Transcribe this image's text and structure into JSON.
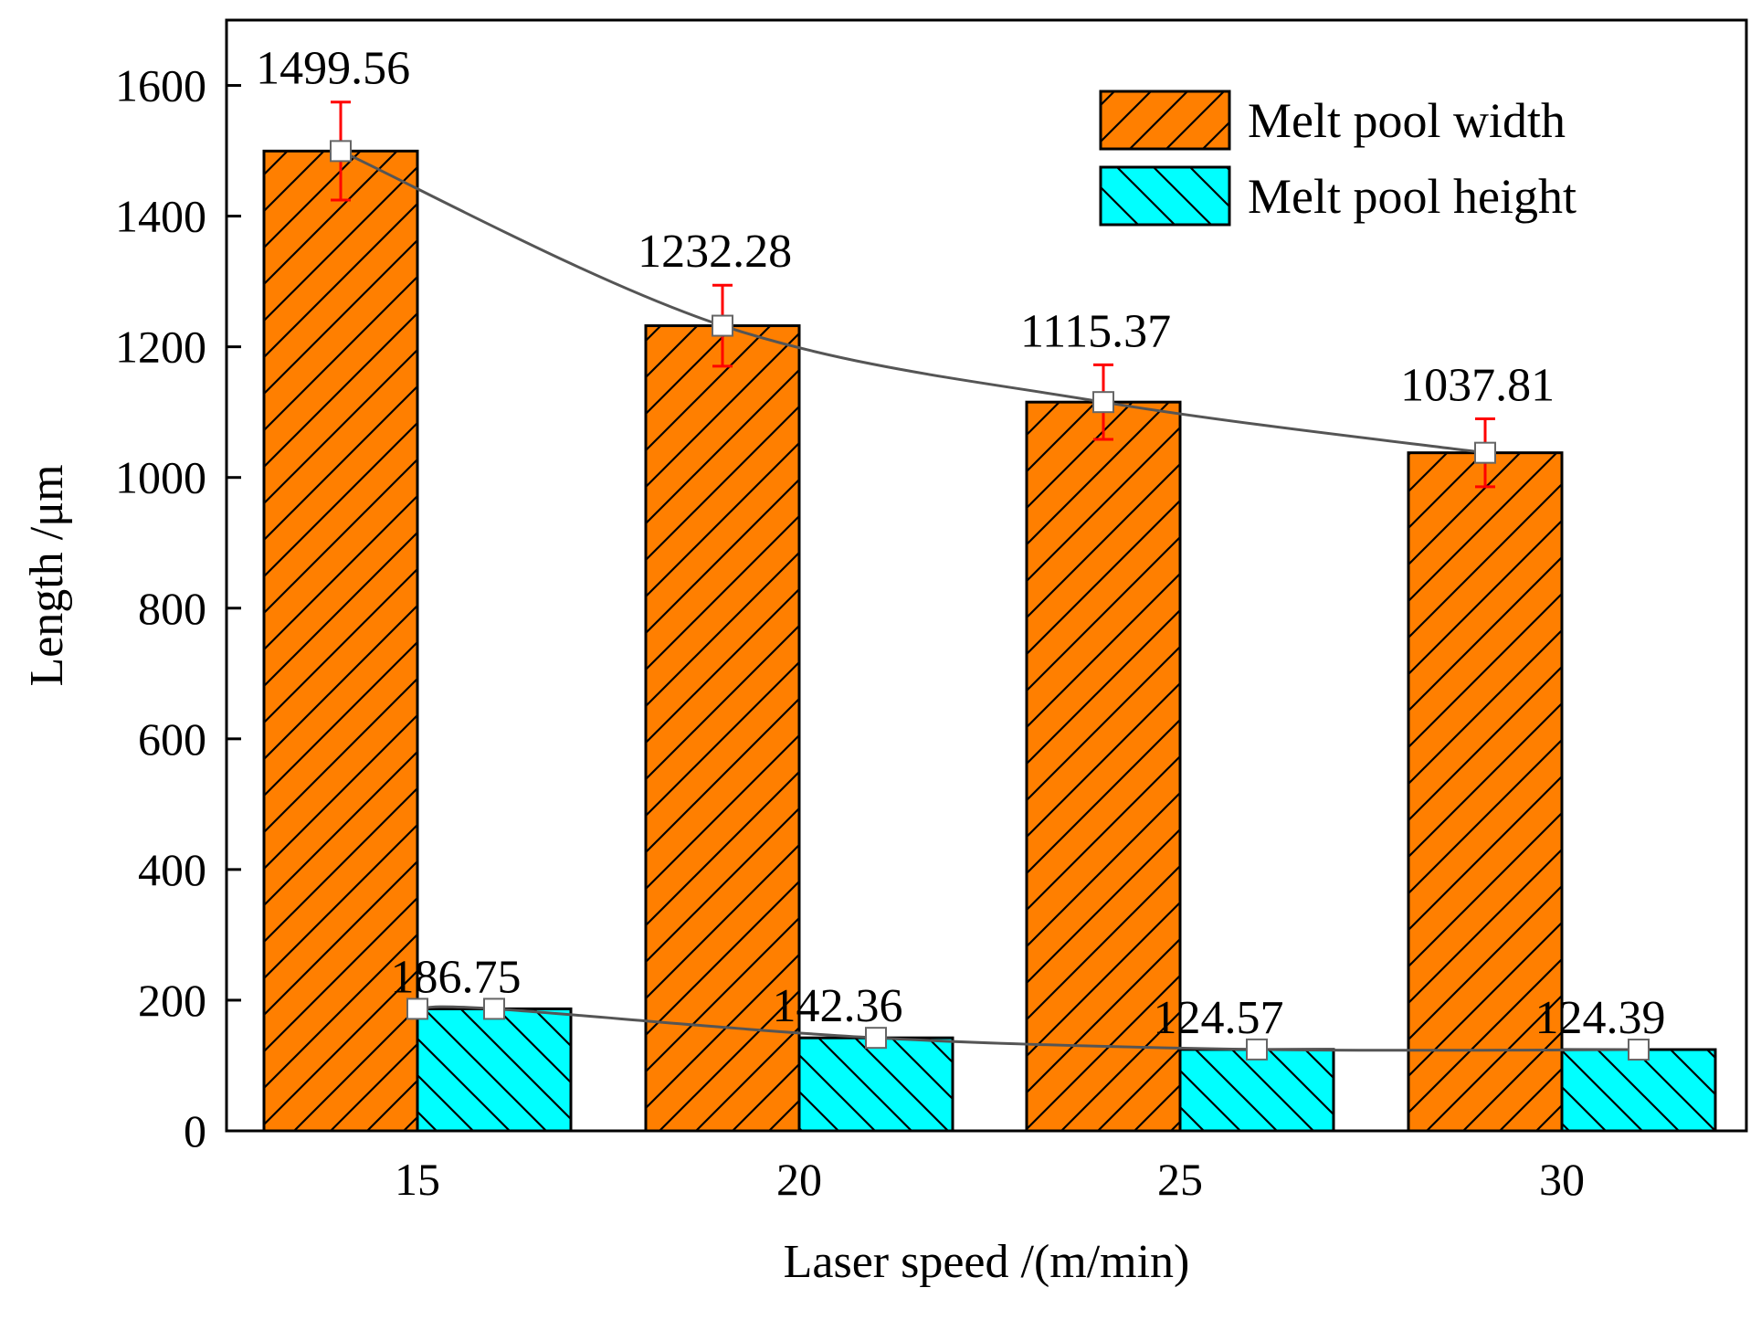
{
  "chart_data": {
    "type": "bar",
    "xlabel": "Laser speed /(m/min)",
    "ylabel": "Length /μm",
    "ylim": [
      0,
      1700
    ],
    "yticks": [
      0,
      200,
      400,
      600,
      800,
      1000,
      1200,
      1400,
      1600
    ],
    "categories": [
      "15",
      "20",
      "25",
      "30"
    ],
    "series": [
      {
        "name": "Melt pool width",
        "values": [
          1499.56,
          1232.28,
          1115.37,
          1037.81
        ],
        "labels": [
          "1499.56",
          "1232.28",
          "1115.37",
          "1037.81"
        ],
        "error": [
          75,
          62,
          57,
          52
        ],
        "fill": "#ff7f00",
        "hatch": "forward"
      },
      {
        "name": "Melt pool height",
        "values": [
          186.75,
          142.36,
          124.57,
          124.39
        ],
        "labels": [
          "186.75",
          "142.36",
          "124.57",
          "124.39"
        ],
        "error": [
          12,
          10,
          9,
          9
        ],
        "fill": "#00ffff",
        "hatch": "backward"
      }
    ],
    "trend_line_color": "#555555",
    "error_bar_color": "#ff0000",
    "legend_position": "top-right"
  }
}
